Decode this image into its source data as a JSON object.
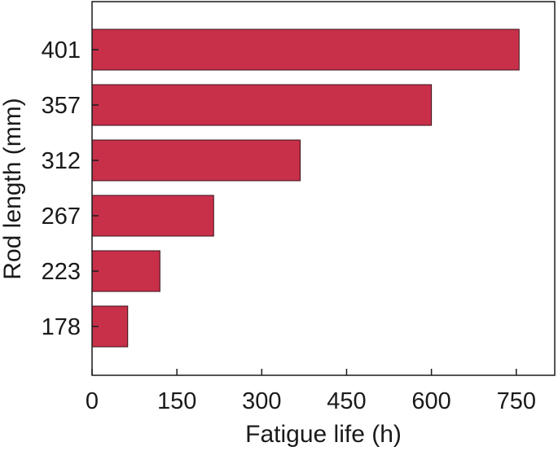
{
  "chart_data": {
    "type": "bar",
    "orientation": "horizontal",
    "categories": [
      "178",
      "223",
      "267",
      "312",
      "357",
      "401"
    ],
    "values": [
      63,
      120,
      215,
      368,
      600,
      755
    ],
    "xlabel": "Fatigue life (h)",
    "ylabel": "Rod length (mm)",
    "xticks": [
      0,
      150,
      300,
      450,
      600,
      750
    ],
    "xlim": [
      0,
      818
    ],
    "grid": false,
    "legend": "none",
    "colors": {
      "bar": "#c8304a",
      "bar_stroke": "#3a1018",
      "axis": "#1a1a1a"
    }
  }
}
